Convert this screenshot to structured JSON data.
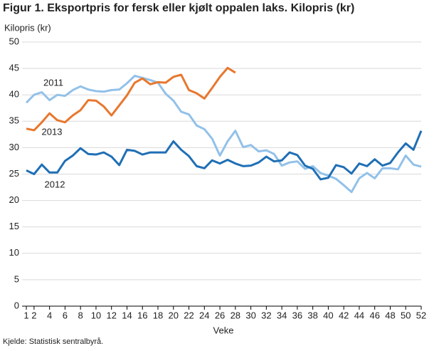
{
  "chart_data": {
    "type": "line",
    "title": "Figur 1. Eksportpris for fersk eller kjølt oppalen laks. Kilopris (kr)",
    "y_label": "Kilopris (kr)",
    "x_label": "Veke",
    "source": "Kjelde: Statistisk sentralbyrå.",
    "x": [
      1,
      2,
      3,
      4,
      5,
      6,
      7,
      8,
      9,
      10,
      11,
      12,
      13,
      14,
      15,
      16,
      17,
      18,
      19,
      20,
      21,
      22,
      23,
      24,
      25,
      26,
      27,
      28,
      29,
      30,
      31,
      32,
      33,
      34,
      35,
      36,
      37,
      38,
      39,
      40,
      41,
      42,
      43,
      44,
      45,
      46,
      47,
      48,
      49,
      50,
      51,
      52
    ],
    "xlim": [
      1,
      52
    ],
    "xticks": [
      1,
      2,
      4,
      6,
      8,
      10,
      12,
      14,
      16,
      18,
      20,
      22,
      24,
      26,
      28,
      30,
      32,
      34,
      36,
      38,
      40,
      42,
      44,
      46,
      48,
      50,
      52
    ],
    "ylim": [
      0,
      50
    ],
    "yticks": [
      0,
      5,
      10,
      15,
      20,
      25,
      30,
      35,
      40,
      45,
      50
    ],
    "grid": true,
    "series": [
      {
        "name": "2011",
        "color": "#92c1e9",
        "values": [
          38.5,
          40,
          40.5,
          39,
          40,
          39.8,
          40.9,
          41.6,
          41,
          40.7,
          40.6,
          40.9,
          41,
          42.2,
          43.6,
          43.2,
          42.8,
          42.3,
          40.2,
          38.9,
          36.8,
          36.3,
          34.2,
          33.5,
          31.7,
          28.5,
          31.2,
          33.2,
          30.1,
          30.5,
          29.3,
          29.5,
          28.8,
          26.6,
          27.2,
          27.4,
          26,
          26.5,
          25.2,
          24.7,
          24.1,
          22.9,
          21.6,
          24.2,
          25.2,
          24.2,
          26.1,
          26.1,
          25.9,
          28.5,
          26.8,
          26.4
        ]
      },
      {
        "name": "2012",
        "color": "#1f6fb5",
        "values": [
          25.7,
          25,
          26.8,
          25.3,
          25.3,
          27.5,
          28.5,
          29.9,
          28.8,
          28.7,
          29.1,
          28.3,
          26.7,
          29.6,
          29.4,
          28.7,
          29.1,
          29.1,
          29.1,
          31.2,
          29.6,
          28.4,
          26.5,
          26.1,
          27.6,
          27,
          27.7,
          27,
          26.5,
          26.6,
          27.2,
          28.3,
          27.4,
          27.6,
          29.1,
          28.6,
          26.6,
          26,
          24,
          24.3,
          26.7,
          26.3,
          25.1,
          27,
          26.5,
          27.8,
          26.6,
          27.1,
          29.1,
          30.8,
          29.6,
          33.2
        ]
      },
      {
        "name": "2013",
        "color": "#e8772e",
        "values": [
          33.6,
          33.3,
          34.8,
          36.5,
          35.2,
          34.8,
          36.1,
          37.1,
          39,
          38.9,
          37.8,
          36.1,
          38,
          39.9,
          42.3,
          43.1,
          42,
          42.4,
          42.3,
          43.4,
          43.8,
          40.9,
          40.3,
          39.3,
          41.3,
          43.4,
          45.1,
          44.2,
          null,
          null,
          null,
          null,
          null,
          null,
          null,
          null,
          null,
          null,
          null,
          null,
          null,
          null,
          null,
          null,
          null,
          null,
          null,
          null,
          null,
          null,
          null,
          null
        ]
      }
    ]
  }
}
